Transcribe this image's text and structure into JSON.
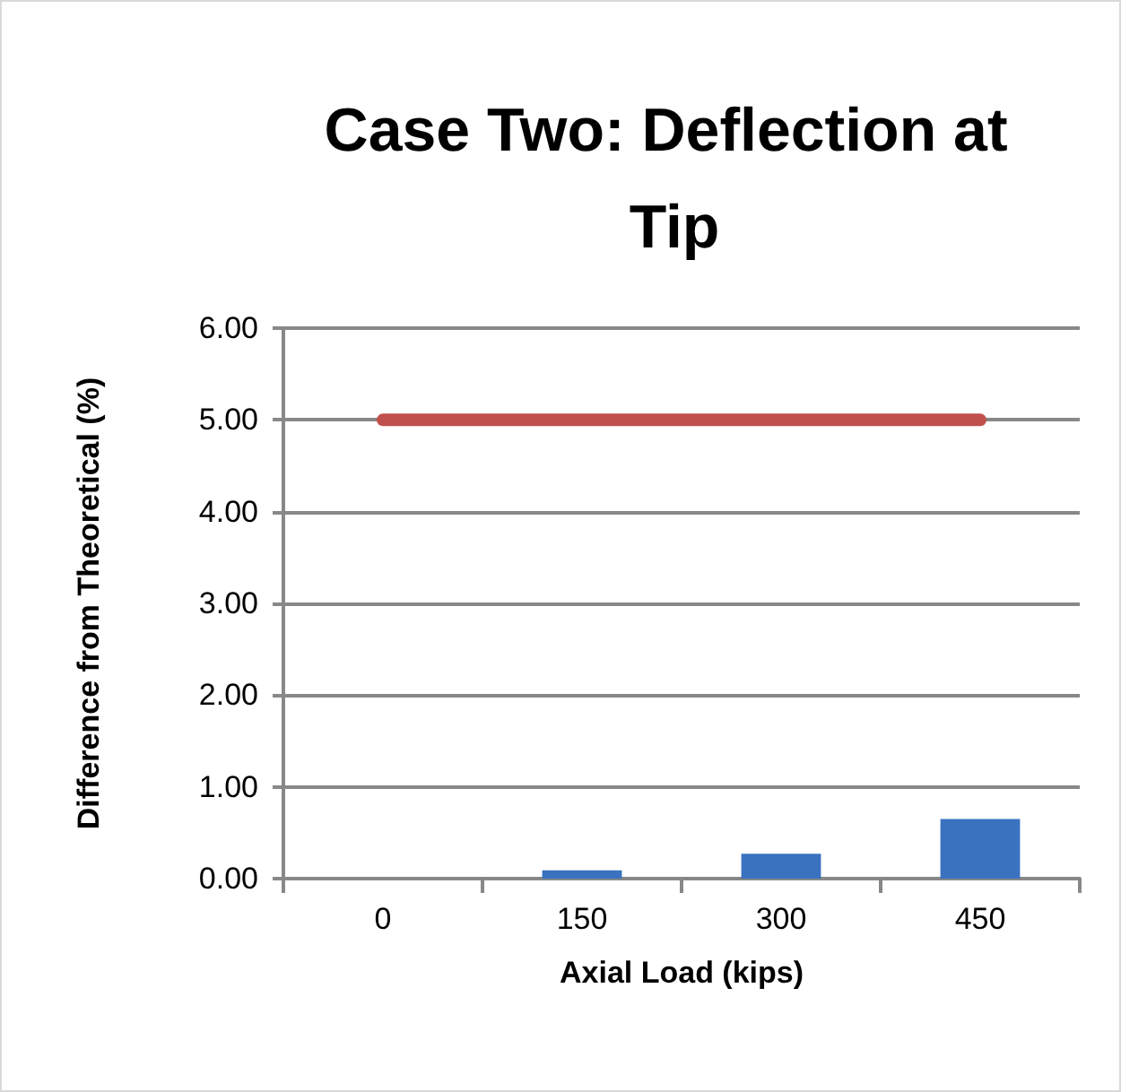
{
  "chart_data": {
    "type": "bar",
    "title": "Case Two: Deflection at Tip",
    "xlabel": "Axial Load (kips)",
    "ylabel": "Difference from Theoretical (%)",
    "categories": [
      "0",
      "150",
      "300",
      "450"
    ],
    "series": [
      {
        "color": "#3a72c0",
        "values": [
          0,
          0.09,
          0.27,
          0.65
        ]
      },
      {
        "type": "line",
        "color": "#c0504d",
        "values": [
          5,
          5,
          5,
          5
        ]
      }
    ],
    "ylim": [
      0,
      6
    ],
    "yticks": [
      {
        "value": 0,
        "label": "0.00"
      },
      {
        "value": 1,
        "label": "1.00"
      },
      {
        "value": 2,
        "label": "2.00"
      },
      {
        "value": 3,
        "label": "3.00"
      },
      {
        "value": 4,
        "label": "4.00"
      },
      {
        "value": 5,
        "label": "5.00"
      },
      {
        "value": 6,
        "label": "6.00"
      }
    ],
    "grid": "y",
    "line_style": "solid"
  }
}
